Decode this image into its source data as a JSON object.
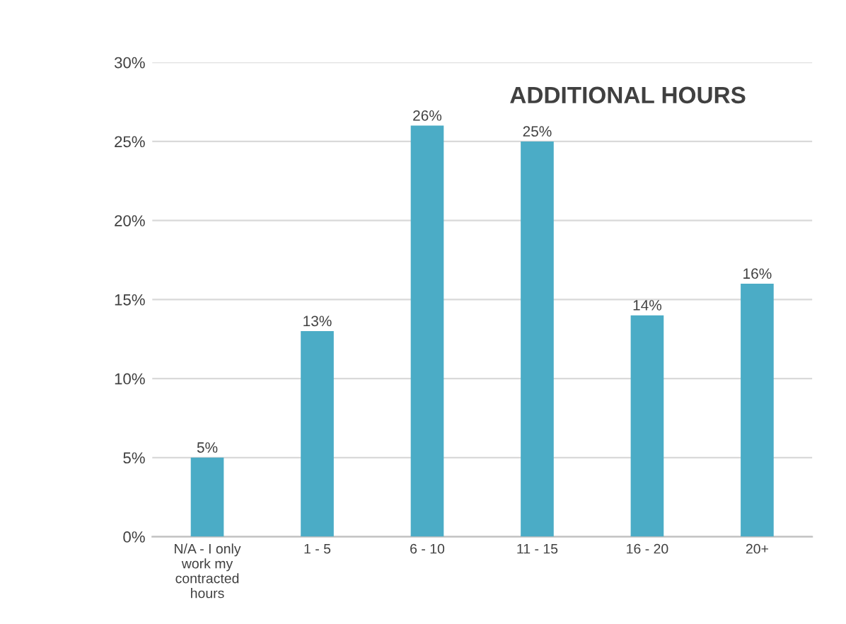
{
  "chart_data": {
    "type": "bar",
    "title": "ADDITIONAL HOURS",
    "categories": [
      "N/A - I only\nwork my\ncontracted\nhours",
      "1 - 5",
      "6 - 10",
      "11 - 15",
      "16 - 20",
      "20+"
    ],
    "values": [
      5,
      13,
      26,
      25,
      14,
      16
    ],
    "color": "#4bacc6",
    "ylim": [
      0,
      30
    ],
    "yticks": [
      {
        "value": 0,
        "label": "0%"
      },
      {
        "value": 5,
        "label": "5%"
      },
      {
        "value": 10,
        "label": "10%"
      },
      {
        "value": 15,
        "label": "15%"
      },
      {
        "value": 20,
        "label": "20%"
      },
      {
        "value": 25,
        "label": "25%"
      },
      {
        "value": 30,
        "label": "30%"
      }
    ],
    "value_labels": [
      "5%",
      "13%",
      "26%",
      "25%",
      "14%",
      "16%"
    ],
    "grid": "y",
    "legend": false
  }
}
